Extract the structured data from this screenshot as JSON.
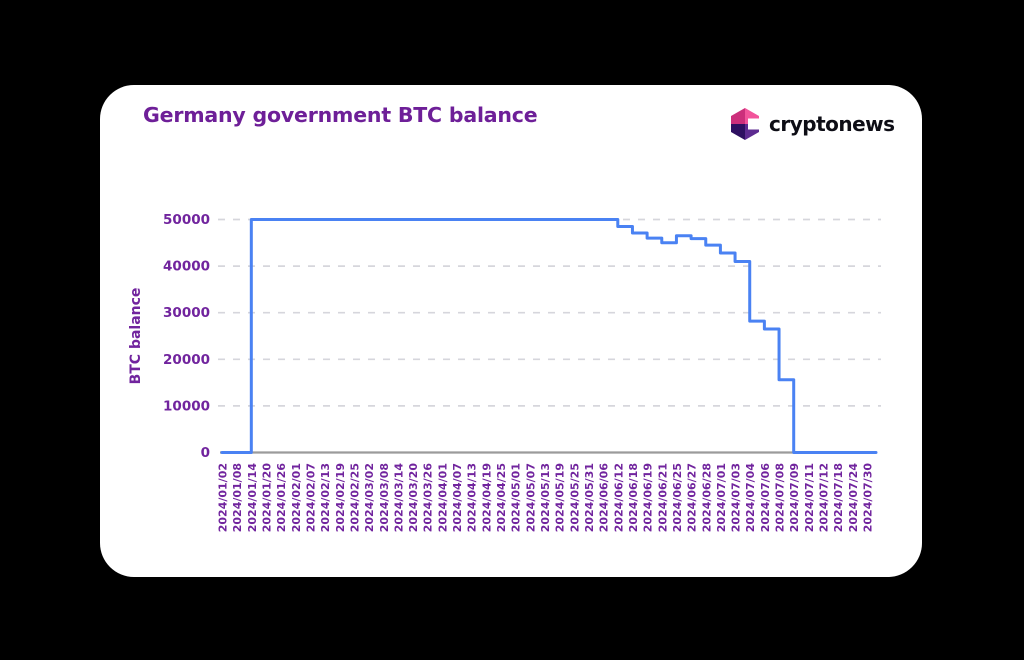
{
  "page": {
    "background_color": "#000000",
    "card_background_color": "#ffffff"
  },
  "header": {
    "title": "Germany government BTC balance",
    "title_color": "#6e1f98",
    "logo": {
      "text": "cryptonews",
      "text_color": "#0d0d15",
      "icon": "cryptonews-hex-c-icon",
      "icon_colors": {
        "top_left": "#cc2f7b",
        "top_right": "#f2549b",
        "bottom_left": "#2e1061",
        "bottom_right": "#5d2b90",
        "notch": "#ffffff"
      }
    }
  },
  "chart_data": {
    "type": "line",
    "line_style": "step-after",
    "title": "Germany government BTC balance",
    "xlabel": "",
    "ylabel": "BTC balance",
    "ylim": [
      0,
      50000
    ],
    "yticks": [
      0,
      10000,
      20000,
      30000,
      40000,
      50000
    ],
    "grid": "horizontal-dashed",
    "legend": "none",
    "line_color": "#4a82f3",
    "grid_color": "#d6d6dc",
    "axis_color": "#9b9b9b",
    "tick_label_color": "#71249e",
    "categories": [
      "2024/01/02",
      "2024/01/08",
      "2024/01/14",
      "2024/01/20",
      "2024/01/26",
      "2024/02/01",
      "2024/02/07",
      "2024/02/13",
      "2024/02/19",
      "2024/02/25",
      "2024/03/02",
      "2024/03/08",
      "2024/03/14",
      "2024/03/20",
      "2024/03/26",
      "2024/04/01",
      "2024/04/07",
      "2024/04/13",
      "2024/04/19",
      "2024/04/25",
      "2024/05/01",
      "2024/05/07",
      "2024/05/13",
      "2024/05/19",
      "2024/05/25",
      "2024/05/31",
      "2024/06/06",
      "2024/06/12",
      "2024/06/18",
      "2024/06/19",
      "2024/06/21",
      "2024/06/25",
      "2024/06/27",
      "2024/06/28",
      "2024/07/01",
      "2024/07/03",
      "2024/07/04",
      "2024/07/06",
      "2024/07/08",
      "2024/07/09",
      "2024/07/11",
      "2024/07/12",
      "2024/07/18",
      "2024/07/24",
      "2024/07/30"
    ],
    "values": [
      0,
      0,
      50000,
      50000,
      50000,
      50000,
      50000,
      50000,
      50000,
      50000,
      50000,
      50000,
      50000,
      50000,
      50000,
      50000,
      50000,
      50000,
      50000,
      50000,
      50000,
      50000,
      50000,
      50000,
      50000,
      50000,
      50000,
      48500,
      47100,
      46000,
      45000,
      46500,
      45900,
      44500,
      42800,
      41000,
      28200,
      26500,
      15600,
      0,
      0,
      0,
      0,
      0,
      0
    ]
  }
}
